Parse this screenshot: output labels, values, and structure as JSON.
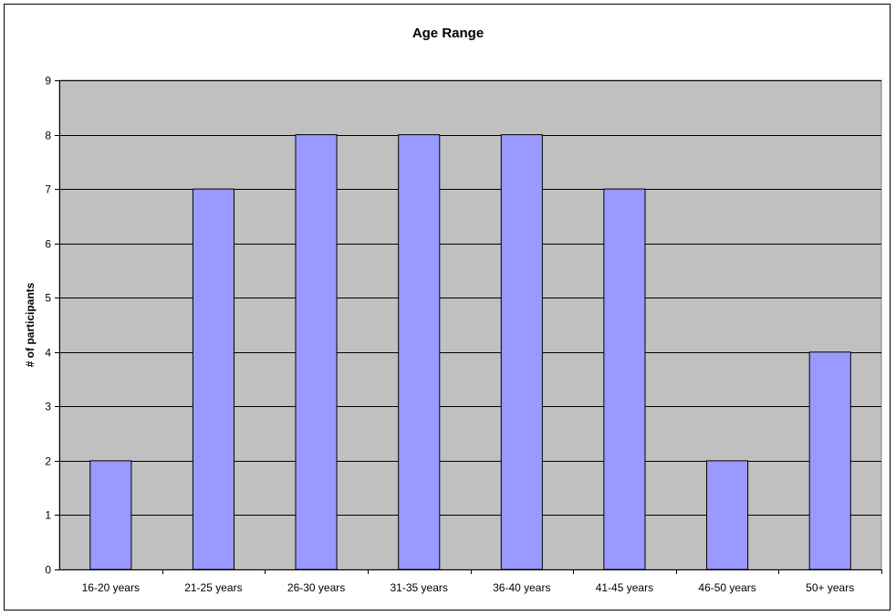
{
  "chart_data": {
    "type": "bar",
    "title": "Age Range",
    "xlabel": "",
    "ylabel": "# of participants",
    "categories": [
      "16-20 years",
      "21-25 years",
      "26-30 years",
      "31-35 years",
      "36-40 years",
      "41-45 years",
      "46-50 years",
      "50+ years"
    ],
    "values": [
      2,
      7,
      8,
      8,
      8,
      7,
      2,
      4
    ],
    "ylim": [
      0,
      9
    ],
    "yticks": [
      0,
      1,
      2,
      3,
      4,
      5,
      6,
      7,
      8,
      9
    ],
    "grid": true,
    "legend": "none",
    "colors": {
      "bar": "#9999ff",
      "plot_background": "#c0c0c0",
      "gridline": "#000000",
      "bar_border": "#000000"
    }
  }
}
